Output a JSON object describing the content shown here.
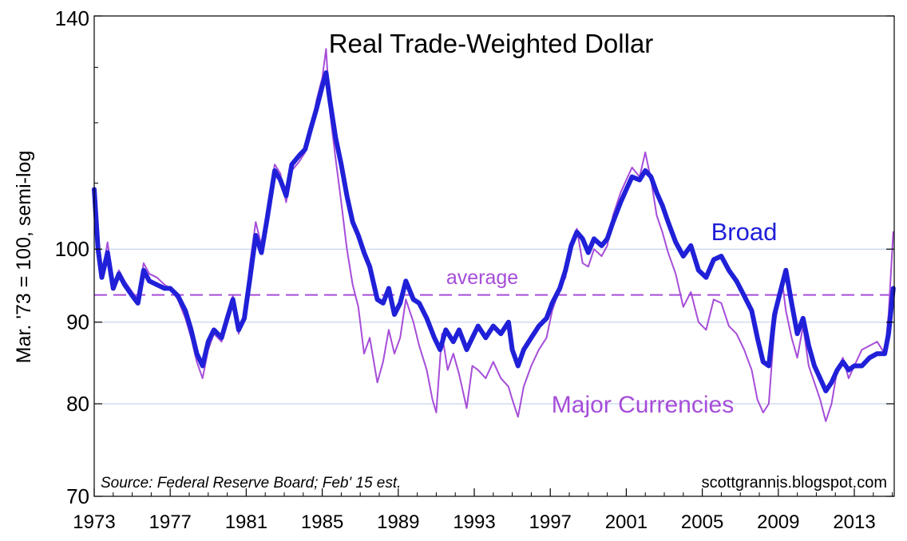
{
  "chart_data": {
    "type": "line",
    "title": "Real Trade-Weighted Dollar",
    "ylabel": "Mar. '73 = 100, semi-log",
    "xlabel": "",
    "yscale": "log",
    "ylim": [
      70,
      140
    ],
    "xlim": [
      1973.0,
      2015.1
    ],
    "x_tick_labels": [
      "1973",
      "1977",
      "1981",
      "1985",
      "1989",
      "1993",
      "1997",
      "2001",
      "2005",
      "2009",
      "2013"
    ],
    "x_tick_values": [
      1973,
      1977,
      1981,
      1985,
      1989,
      1993,
      1997,
      2001,
      2005,
      2009,
      2013
    ],
    "y_tick_labels": [
      "70",
      "80",
      "90",
      "100",
      "140"
    ],
    "y_tick_values": [
      70,
      80,
      90,
      100,
      140
    ],
    "gridlines_y": [
      80,
      90,
      100
    ],
    "source": "Source: Federal Reserve Board; Feb' 15 est.",
    "watermark": "scottgrannis.blogspot.com",
    "average": {
      "label": "average",
      "value": 93.6,
      "color": "#a64dd9"
    },
    "series": [
      {
        "name": "Broad",
        "color": "#2020d8",
        "points": [
          [
            1973.0,
            109.0
          ],
          [
            1973.2,
            100.0
          ],
          [
            1973.4,
            96.0
          ],
          [
            1973.7,
            99.5
          ],
          [
            1974.0,
            94.5
          ],
          [
            1974.3,
            96.5
          ],
          [
            1974.6,
            95.0
          ],
          [
            1975.0,
            93.5
          ],
          [
            1975.3,
            92.5
          ],
          [
            1975.6,
            97.0
          ],
          [
            1975.9,
            95.5
          ],
          [
            1976.3,
            95.0
          ],
          [
            1976.7,
            94.5
          ],
          [
            1977.0,
            94.5
          ],
          [
            1977.4,
            93.5
          ],
          [
            1977.8,
            91.5
          ],
          [
            1978.1,
            89.0
          ],
          [
            1978.4,
            86.0
          ],
          [
            1978.7,
            84.5
          ],
          [
            1979.0,
            87.5
          ],
          [
            1979.3,
            89.0
          ],
          [
            1979.7,
            88.0
          ],
          [
            1980.0,
            90.5
          ],
          [
            1980.3,
            93.0
          ],
          [
            1980.6,
            89.0
          ],
          [
            1980.9,
            90.5
          ],
          [
            1981.2,
            96.0
          ],
          [
            1981.5,
            102.0
          ],
          [
            1981.8,
            99.5
          ],
          [
            1982.1,
            104.5
          ],
          [
            1982.5,
            112.0
          ],
          [
            1982.8,
            110.5
          ],
          [
            1983.1,
            108.0
          ],
          [
            1983.4,
            113.0
          ],
          [
            1983.8,
            114.5
          ],
          [
            1984.1,
            115.5
          ],
          [
            1984.4,
            119.0
          ],
          [
            1984.7,
            122.5
          ],
          [
            1985.0,
            126.5
          ],
          [
            1985.2,
            129.0
          ],
          [
            1985.4,
            124.0
          ],
          [
            1985.7,
            117.5
          ],
          [
            1986.0,
            113.0
          ],
          [
            1986.3,
            108.0
          ],
          [
            1986.6,
            104.0
          ],
          [
            1986.9,
            102.0
          ],
          [
            1987.2,
            99.5
          ],
          [
            1987.5,
            97.5
          ],
          [
            1987.9,
            93.0
          ],
          [
            1988.2,
            92.5
          ],
          [
            1988.5,
            94.5
          ],
          [
            1988.8,
            91.0
          ],
          [
            1989.1,
            92.5
          ],
          [
            1989.4,
            95.5
          ],
          [
            1989.8,
            93.0
          ],
          [
            1990.1,
            92.5
          ],
          [
            1990.5,
            90.5
          ],
          [
            1990.9,
            88.0
          ],
          [
            1991.2,
            86.5
          ],
          [
            1991.5,
            89.0
          ],
          [
            1991.9,
            87.5
          ],
          [
            1992.2,
            89.0
          ],
          [
            1992.6,
            86.5
          ],
          [
            1992.9,
            88.0
          ],
          [
            1993.2,
            89.5
          ],
          [
            1993.6,
            88.0
          ],
          [
            1994.0,
            89.5
          ],
          [
            1994.4,
            88.5
          ],
          [
            1994.8,
            90.0
          ],
          [
            1995.0,
            86.5
          ],
          [
            1995.3,
            84.5
          ],
          [
            1995.6,
            86.5
          ],
          [
            1996.0,
            88.0
          ],
          [
            1996.4,
            89.5
          ],
          [
            1996.8,
            90.5
          ],
          [
            1997.1,
            92.5
          ],
          [
            1997.5,
            94.5
          ],
          [
            1997.8,
            97.0
          ],
          [
            1998.1,
            100.5
          ],
          [
            1998.4,
            102.5
          ],
          [
            1998.7,
            101.5
          ],
          [
            1999.0,
            99.5
          ],
          [
            1999.3,
            101.5
          ],
          [
            1999.7,
            100.5
          ],
          [
            2000.0,
            101.5
          ],
          [
            2000.3,
            104.0
          ],
          [
            2000.7,
            107.0
          ],
          [
            2001.0,
            109.0
          ],
          [
            2001.3,
            111.0
          ],
          [
            2001.7,
            110.5
          ],
          [
            2002.0,
            112.0
          ],
          [
            2002.3,
            111.0
          ],
          [
            2002.6,
            108.5
          ],
          [
            2002.9,
            106.5
          ],
          [
            2003.2,
            104.0
          ],
          [
            2003.6,
            101.0
          ],
          [
            2004.0,
            99.0
          ],
          [
            2004.4,
            100.5
          ],
          [
            2004.8,
            97.0
          ],
          [
            2005.2,
            96.0
          ],
          [
            2005.6,
            98.5
          ],
          [
            2006.0,
            99.0
          ],
          [
            2006.4,
            97.0
          ],
          [
            2006.8,
            95.5
          ],
          [
            2007.2,
            93.5
          ],
          [
            2007.6,
            91.5
          ],
          [
            2007.9,
            88.0
          ],
          [
            2008.2,
            85.0
          ],
          [
            2008.5,
            84.5
          ],
          [
            2008.8,
            91.0
          ],
          [
            2009.2,
            95.0
          ],
          [
            2009.4,
            97.0
          ],
          [
            2009.7,
            92.5
          ],
          [
            2010.0,
            88.5
          ],
          [
            2010.3,
            90.5
          ],
          [
            2010.6,
            87.0
          ],
          [
            2010.9,
            84.5
          ],
          [
            2011.2,
            83.0
          ],
          [
            2011.5,
            81.5
          ],
          [
            2011.8,
            82.5
          ],
          [
            2012.1,
            84.0
          ],
          [
            2012.4,
            85.0
          ],
          [
            2012.7,
            84.0
          ],
          [
            2013.0,
            84.5
          ],
          [
            2013.4,
            84.5
          ],
          [
            2013.8,
            85.5
          ],
          [
            2014.2,
            86.0
          ],
          [
            2014.6,
            86.0
          ],
          [
            2014.8,
            88.5
          ],
          [
            2015.05,
            94.5
          ]
        ]
      },
      {
        "name": "Major Currencies",
        "color": "#a64dd9",
        "points": [
          [
            1973.0,
            108.0
          ],
          [
            1973.2,
            99.0
          ],
          [
            1973.4,
            96.0
          ],
          [
            1973.7,
            101.0
          ],
          [
            1974.0,
            95.0
          ],
          [
            1974.3,
            97.0
          ],
          [
            1974.6,
            95.5
          ],
          [
            1975.0,
            94.0
          ],
          [
            1975.3,
            93.0
          ],
          [
            1975.6,
            98.0
          ],
          [
            1975.9,
            96.5
          ],
          [
            1976.3,
            96.0
          ],
          [
            1976.7,
            95.0
          ],
          [
            1977.0,
            94.5
          ],
          [
            1977.4,
            93.0
          ],
          [
            1977.8,
            90.5
          ],
          [
            1978.1,
            88.0
          ],
          [
            1978.4,
            85.0
          ],
          [
            1978.7,
            83.0
          ],
          [
            1979.0,
            86.5
          ],
          [
            1979.3,
            88.5
          ],
          [
            1979.7,
            87.5
          ],
          [
            1980.0,
            90.0
          ],
          [
            1980.3,
            93.5
          ],
          [
            1980.6,
            88.5
          ],
          [
            1980.9,
            91.0
          ],
          [
            1981.2,
            98.0
          ],
          [
            1981.5,
            104.0
          ],
          [
            1981.8,
            100.5
          ],
          [
            1982.1,
            106.0
          ],
          [
            1982.5,
            113.0
          ],
          [
            1982.8,
            111.5
          ],
          [
            1983.1,
            107.0
          ],
          [
            1983.4,
            112.0
          ],
          [
            1983.8,
            113.5
          ],
          [
            1984.1,
            115.0
          ],
          [
            1984.4,
            118.5
          ],
          [
            1984.7,
            124.0
          ],
          [
            1985.0,
            128.0
          ],
          [
            1985.2,
            133.5
          ],
          [
            1985.4,
            122.0
          ],
          [
            1985.7,
            114.0
          ],
          [
            1986.0,
            107.0
          ],
          [
            1986.3,
            100.0
          ],
          [
            1986.6,
            95.0
          ],
          [
            1986.9,
            92.0
          ],
          [
            1987.2,
            86.0
          ],
          [
            1987.5,
            88.0
          ],
          [
            1987.9,
            82.5
          ],
          [
            1988.2,
            85.0
          ],
          [
            1988.5,
            89.0
          ],
          [
            1988.8,
            86.0
          ],
          [
            1989.1,
            88.0
          ],
          [
            1989.4,
            93.0
          ],
          [
            1989.8,
            90.0
          ],
          [
            1990.1,
            87.0
          ],
          [
            1990.5,
            84.0
          ],
          [
            1990.8,
            80.5
          ],
          [
            1991.0,
            79.0
          ],
          [
            1991.3,
            88.5
          ],
          [
            1991.6,
            84.0
          ],
          [
            1991.9,
            86.0
          ],
          [
            1992.2,
            83.5
          ],
          [
            1992.6,
            79.5
          ],
          [
            1992.9,
            84.5
          ],
          [
            1993.2,
            84.0
          ],
          [
            1993.6,
            83.0
          ],
          [
            1994.0,
            85.0
          ],
          [
            1994.4,
            83.0
          ],
          [
            1994.8,
            82.0
          ],
          [
            1995.0,
            80.5
          ],
          [
            1995.3,
            78.5
          ],
          [
            1995.6,
            82.0
          ],
          [
            1996.0,
            84.5
          ],
          [
            1996.4,
            86.5
          ],
          [
            1996.8,
            88.0
          ],
          [
            1997.1,
            91.5
          ],
          [
            1997.5,
            94.5
          ],
          [
            1997.8,
            96.0
          ],
          [
            1998.1,
            101.0
          ],
          [
            1998.4,
            103.0
          ],
          [
            1998.7,
            98.0
          ],
          [
            1999.0,
            97.5
          ],
          [
            1999.3,
            100.0
          ],
          [
            1999.7,
            99.0
          ],
          [
            2000.0,
            100.5
          ],
          [
            2000.3,
            105.0
          ],
          [
            2000.7,
            108.5
          ],
          [
            2001.0,
            110.5
          ],
          [
            2001.3,
            112.5
          ],
          [
            2001.7,
            111.0
          ],
          [
            2002.0,
            115.0
          ],
          [
            2002.3,
            110.5
          ],
          [
            2002.6,
            105.0
          ],
          [
            2002.9,
            102.5
          ],
          [
            2003.2,
            99.5
          ],
          [
            2003.6,
            96.5
          ],
          [
            2004.0,
            92.0
          ],
          [
            2004.4,
            94.0
          ],
          [
            2004.8,
            90.0
          ],
          [
            2005.2,
            89.0
          ],
          [
            2005.6,
            93.0
          ],
          [
            2006.0,
            92.5
          ],
          [
            2006.4,
            89.5
          ],
          [
            2006.8,
            88.5
          ],
          [
            2007.2,
            86.5
          ],
          [
            2007.6,
            84.0
          ],
          [
            2007.9,
            80.5
          ],
          [
            2008.2,
            79.0
          ],
          [
            2008.5,
            80.0
          ],
          [
            2008.8,
            89.5
          ],
          [
            2009.2,
            95.5
          ],
          [
            2009.4,
            91.5
          ],
          [
            2009.7,
            88.0
          ],
          [
            2010.0,
            85.5
          ],
          [
            2010.3,
            89.5
          ],
          [
            2010.6,
            84.5
          ],
          [
            2010.9,
            82.5
          ],
          [
            2011.2,
            80.5
          ],
          [
            2011.5,
            78.0
          ],
          [
            2011.8,
            80.0
          ],
          [
            2012.1,
            84.0
          ],
          [
            2012.4,
            85.5
          ],
          [
            2012.7,
            83.0
          ],
          [
            2013.0,
            84.5
          ],
          [
            2013.4,
            86.5
          ],
          [
            2013.8,
            87.0
          ],
          [
            2014.2,
            87.5
          ],
          [
            2014.6,
            86.0
          ],
          [
            2014.8,
            91.0
          ],
          [
            2015.05,
            102.5
          ]
        ]
      }
    ]
  }
}
